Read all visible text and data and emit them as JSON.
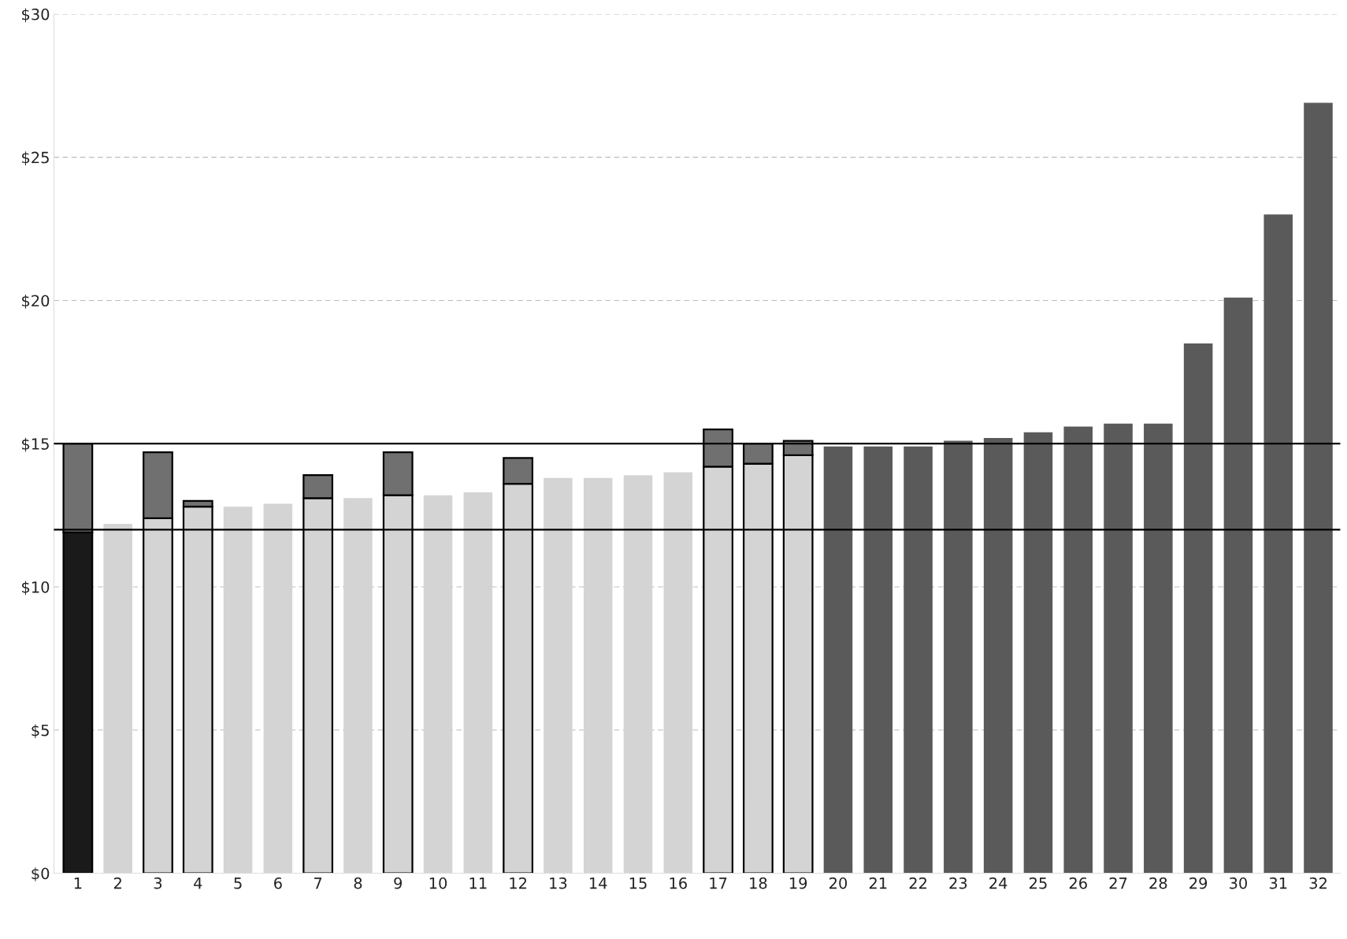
{
  "chart_data": {
    "type": "bar",
    "stacked": true,
    "categories": [
      "1",
      "2",
      "3",
      "4",
      "5",
      "6",
      "7",
      "8",
      "9",
      "10",
      "11",
      "12",
      "13",
      "14",
      "15",
      "16",
      "17",
      "18",
      "19",
      "20",
      "21",
      "22",
      "23",
      "24",
      "25",
      "26",
      "27",
      "28",
      "29",
      "30",
      "31",
      "32"
    ],
    "series": [
      {
        "colors": [
          "#1a1a1a",
          "#d4d4d4",
          "#d4d4d4",
          "#d4d4d4",
          "#d4d4d4",
          "#d4d4d4",
          "#d4d4d4",
          "#d4d4d4",
          "#d4d4d4",
          "#d4d4d4",
          "#d4d4d4",
          "#d4d4d4",
          "#d4d4d4",
          "#d4d4d4",
          "#d4d4d4",
          "#d4d4d4",
          "#d4d4d4",
          "#d4d4d4",
          "#d4d4d4",
          "#5a5a5a",
          "#5a5a5a",
          "#5a5a5a",
          "#5a5a5a",
          "#5a5a5a",
          "#5a5a5a",
          "#5a5a5a",
          "#5a5a5a",
          "#5a5a5a",
          "#5a5a5a",
          "#5a5a5a",
          "#5a5a5a",
          "#5a5a5a"
        ],
        "values": [
          11.9,
          12.2,
          12.4,
          12.8,
          12.8,
          12.9,
          13.1,
          13.1,
          13.2,
          13.2,
          13.3,
          13.6,
          13.8,
          13.8,
          13.9,
          14.0,
          14.2,
          14.3,
          14.6,
          14.9,
          14.9,
          14.9,
          15.1,
          15.2,
          15.4,
          15.6,
          15.7,
          15.7,
          18.5,
          20.1,
          23.0,
          26.9
        ]
      },
      {
        "color": "#707070",
        "values": [
          3.1,
          null,
          2.3,
          0.2,
          null,
          null,
          0.8,
          null,
          1.5,
          null,
          null,
          0.9,
          null,
          null,
          null,
          null,
          1.3,
          0.7,
          0.5,
          null,
          null,
          null,
          null,
          null,
          null,
          null,
          null,
          null,
          null,
          null,
          null,
          null
        ]
      }
    ],
    "ylim": [
      0,
      30
    ],
    "yticks": [
      {
        "value": 0,
        "label": "$0"
      },
      {
        "value": 5,
        "label": "$5"
      },
      {
        "value": 10,
        "label": "$10"
      },
      {
        "value": 15,
        "label": "$15"
      },
      {
        "value": 20,
        "label": "$20"
      },
      {
        "value": 25,
        "label": "$25"
      },
      {
        "value": 30,
        "label": "$30"
      }
    ],
    "grid": "y",
    "ref_lines": [
      {
        "axis": "y",
        "value": 12,
        "color": "#000000"
      },
      {
        "axis": "y",
        "value": 15,
        "color": "#000000"
      }
    ]
  }
}
